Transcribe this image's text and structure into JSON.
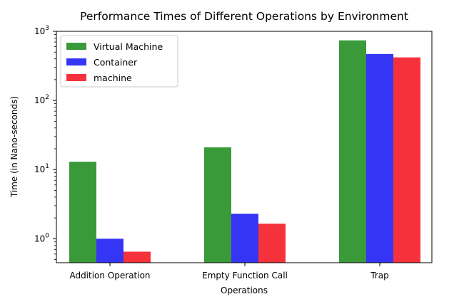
{
  "chart_data": {
    "type": "bar",
    "title": "Performance Times of Different Operations by Environment",
    "xlabel": "Operations",
    "ylabel": "Time (in Nano-seconds)",
    "yscale": "log",
    "ylim": [
      0.45,
      1000
    ],
    "yticks": [
      {
        "value": 1,
        "base": "10",
        "exp": "0"
      },
      {
        "value": 10,
        "base": "10",
        "exp": "1"
      },
      {
        "value": 100,
        "base": "10",
        "exp": "2"
      },
      {
        "value": 1000,
        "base": "10",
        "exp": "3"
      }
    ],
    "categories": [
      "Addition Operation",
      "Empty Function Call",
      "Trap"
    ],
    "series": [
      {
        "name": "Virtual Machine",
        "color": "#3a9a3a",
        "values": [
          13,
          21,
          740
        ]
      },
      {
        "name": "Container",
        "color": "#3535f5",
        "values": [
          1.0,
          2.3,
          470
        ]
      },
      {
        "name": "machine",
        "color": "#f5323c",
        "values": [
          0.65,
          1.65,
          420
        ]
      }
    ],
    "legend_position": "top-left",
    "grid": false
  }
}
